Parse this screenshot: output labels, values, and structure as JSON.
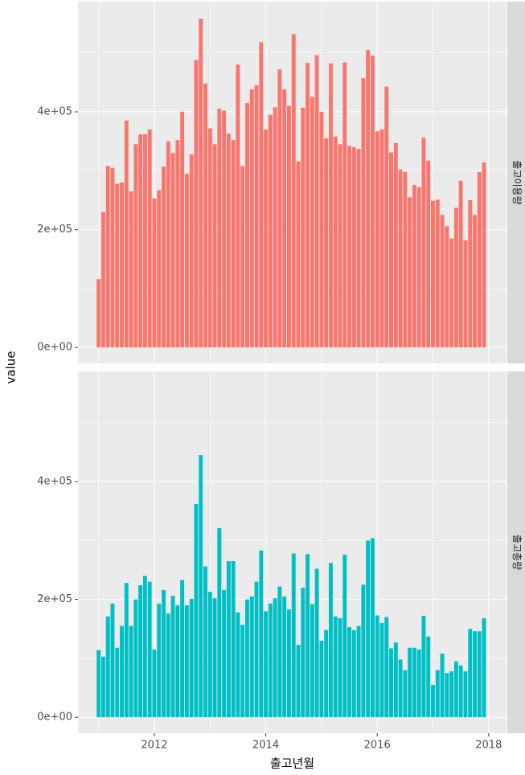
{
  "chart_data": [
    {
      "type": "bar",
      "strip": "출고이용량",
      "ylabel": "value",
      "color": "#f8766d",
      "x": [
        "2011-01",
        "2011-02",
        "2011-03",
        "2011-04",
        "2011-05",
        "2011-06",
        "2011-07",
        "2011-08",
        "2011-09",
        "2011-10",
        "2011-11",
        "2011-12",
        "2012-01",
        "2012-02",
        "2012-03",
        "2012-04",
        "2012-05",
        "2012-06",
        "2012-07",
        "2012-08",
        "2012-09",
        "2012-10",
        "2012-11",
        "2012-12",
        "2013-01",
        "2013-02",
        "2013-03",
        "2013-04",
        "2013-05",
        "2013-06",
        "2013-07",
        "2013-08",
        "2013-09",
        "2013-10",
        "2013-11",
        "2013-12",
        "2014-01",
        "2014-02",
        "2014-03",
        "2014-04",
        "2014-05",
        "2014-06",
        "2014-07",
        "2014-08",
        "2014-09",
        "2014-10",
        "2014-11",
        "2014-12",
        "2015-01",
        "2015-02",
        "2015-03",
        "2015-04",
        "2015-05",
        "2015-06",
        "2015-07",
        "2015-08",
        "2015-09",
        "2015-10",
        "2015-11",
        "2015-12",
        "2016-01",
        "2016-02",
        "2016-03",
        "2016-04",
        "2016-05",
        "2016-06",
        "2016-07",
        "2016-08",
        "2016-09",
        "2016-10",
        "2016-11",
        "2016-12",
        "2017-01",
        "2017-02",
        "2017-03",
        "2017-04",
        "2017-05",
        "2017-06",
        "2017-07",
        "2017-08",
        "2017-09",
        "2017-10",
        "2017-11",
        "2017-12"
      ],
      "values": [
        116000,
        230000,
        308000,
        305000,
        278000,
        280000,
        385000,
        265000,
        345000,
        362000,
        362000,
        370000,
        253000,
        267000,
        307000,
        350000,
        330000,
        352000,
        400000,
        295000,
        328000,
        488000,
        558000,
        448000,
        372000,
        345000,
        405000,
        402000,
        363000,
        352000,
        480000,
        308000,
        415000,
        438000,
        445000,
        518000,
        370000,
        395000,
        408000,
        472000,
        438000,
        410000,
        532000,
        316000,
        407000,
        483000,
        425000,
        496000,
        400000,
        355000,
        482000,
        358000,
        345000,
        484000,
        342000,
        340000,
        337000,
        457000,
        505000,
        495000,
        367000,
        370000,
        443000,
        331000,
        347000,
        302000,
        298000,
        255000,
        276000,
        272000,
        356000,
        317000,
        249000,
        251000,
        225000,
        206000,
        185000,
        237000,
        283000,
        182000,
        250000,
        225000,
        298000,
        314000
      ],
      "ylim": [
        -27000,
        587000
      ],
      "yticks": [
        {
          "value": 0,
          "label": "0e+00"
        },
        {
          "value": 200000,
          "label": "2e+05"
        },
        {
          "value": 400000,
          "label": "4e+05"
        }
      ],
      "xlim": [
        2010.63,
        2018.32
      ],
      "xticks": [
        2012,
        2014,
        2016,
        2018
      ],
      "grid": true
    },
    {
      "type": "bar",
      "strip": "출고총량",
      "xlabel": "출고년월",
      "color": "#00bfc4",
      "x": [
        "2011-01",
        "2011-02",
        "2011-03",
        "2011-04",
        "2011-05",
        "2011-06",
        "2011-07",
        "2011-08",
        "2011-09",
        "2011-10",
        "2011-11",
        "2011-12",
        "2012-01",
        "2012-02",
        "2012-03",
        "2012-04",
        "2012-05",
        "2012-06",
        "2012-07",
        "2012-08",
        "2012-09",
        "2012-10",
        "2012-11",
        "2012-12",
        "2013-01",
        "2013-02",
        "2013-03",
        "2013-04",
        "2013-05",
        "2013-06",
        "2013-07",
        "2013-08",
        "2013-09",
        "2013-10",
        "2013-11",
        "2013-12",
        "2014-01",
        "2014-02",
        "2014-03",
        "2014-04",
        "2014-05",
        "2014-06",
        "2014-07",
        "2014-08",
        "2014-09",
        "2014-10",
        "2014-11",
        "2014-12",
        "2015-01",
        "2015-02",
        "2015-03",
        "2015-04",
        "2015-05",
        "2015-06",
        "2015-07",
        "2015-08",
        "2015-09",
        "2015-10",
        "2015-11",
        "2015-12",
        "2016-01",
        "2016-02",
        "2016-03",
        "2016-04",
        "2016-05",
        "2016-06",
        "2016-07",
        "2016-08",
        "2016-09",
        "2016-10",
        "2016-11",
        "2016-12",
        "2017-01",
        "2017-02",
        "2017-03",
        "2017-04",
        "2017-05",
        "2017-06",
        "2017-07",
        "2017-08",
        "2017-09",
        "2017-10",
        "2017-11",
        "2017-12"
      ],
      "values": [
        114000,
        103000,
        171000,
        193000,
        118000,
        155000,
        228000,
        155000,
        200000,
        224000,
        240000,
        230000,
        115000,
        193000,
        216000,
        176000,
        206000,
        190000,
        233000,
        190000,
        201000,
        362000,
        445000,
        256000,
        213000,
        202000,
        321000,
        216000,
        265000,
        265000,
        178000,
        157000,
        200000,
        205000,
        230000,
        283000,
        180000,
        193000,
        202000,
        222000,
        205000,
        183000,
        278000,
        123000,
        220000,
        277000,
        192000,
        252000,
        130000,
        148000,
        262000,
        171000,
        168000,
        276000,
        153000,
        148000,
        155000,
        225000,
        300000,
        304000,
        173000,
        160000,
        170000,
        117000,
        127000,
        98000,
        80000,
        118000,
        118000,
        115000,
        172000,
        137000,
        55000,
        80000,
        108000,
        75000,
        78000,
        95000,
        88000,
        78000,
        150000,
        146000,
        146000,
        168000
      ],
      "ylim": [
        -27000,
        587000
      ],
      "yticks": [
        {
          "value": 0,
          "label": "0e+00"
        },
        {
          "value": 200000,
          "label": "2e+05"
        },
        {
          "value": 400000,
          "label": "4e+05"
        }
      ],
      "xlim": [
        2010.63,
        2018.32
      ],
      "xticks": [
        2012,
        2014,
        2016,
        2018
      ],
      "grid": true
    }
  ]
}
